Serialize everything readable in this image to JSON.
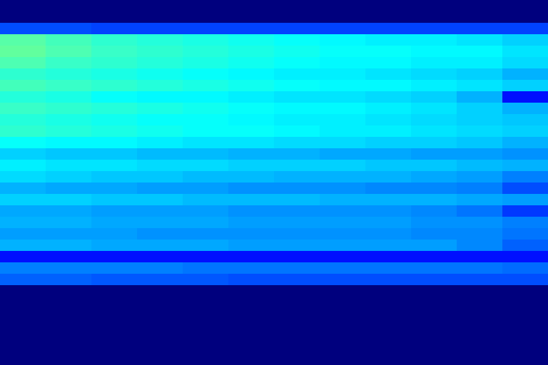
{
  "chart_data": {
    "type": "heatmap",
    "tick_labels": false,
    "color_domain": [
      0,
      1
    ],
    "cells": [
      [
        0,
        0,
        0,
        0,
        0,
        0,
        0,
        0,
        0,
        0,
        0,
        0
      ],
      [
        0,
        0,
        0,
        0,
        0,
        0,
        0,
        0,
        0,
        0,
        0,
        0
      ],
      [
        0.2,
        0.2,
        0.19,
        0.19,
        0.19,
        0.19,
        0.19,
        0.19,
        0.19,
        0.19,
        0.19,
        0.19
      ],
      [
        0.46,
        0.44,
        0.42,
        0.41,
        0.4,
        0.39,
        0.38,
        0.37,
        0.36,
        0.36,
        0.35,
        0.33
      ],
      [
        0.47,
        0.45,
        0.43,
        0.42,
        0.41,
        0.4,
        0.39,
        0.38,
        0.38,
        0.37,
        0.37,
        0.35
      ],
      [
        0.45,
        0.43,
        0.42,
        0.41,
        0.4,
        0.39,
        0.38,
        0.37,
        0.37,
        0.36,
        0.36,
        0.34
      ],
      [
        0.42,
        0.41,
        0.4,
        0.39,
        0.38,
        0.37,
        0.36,
        0.36,
        0.35,
        0.34,
        0.33,
        0.3
      ],
      [
        0.44,
        0.43,
        0.42,
        0.41,
        0.4,
        0.39,
        0.38,
        0.37,
        0.37,
        0.36,
        0.35,
        0.33
      ],
      [
        0.41,
        0.4,
        0.38,
        0.37,
        0.37,
        0.36,
        0.35,
        0.35,
        0.34,
        0.33,
        0.3,
        0.14
      ],
      [
        0.43,
        0.42,
        0.41,
        0.4,
        0.39,
        0.38,
        0.37,
        0.37,
        0.36,
        0.35,
        0.33,
        0.3
      ],
      [
        0.41,
        0.4,
        0.39,
        0.38,
        0.38,
        0.37,
        0.36,
        0.36,
        0.35,
        0.34,
        0.33,
        0.32
      ],
      [
        0.42,
        0.41,
        0.4,
        0.39,
        0.38,
        0.38,
        0.37,
        0.36,
        0.36,
        0.35,
        0.34,
        0.33
      ],
      [
        0.38,
        0.37,
        0.37,
        0.36,
        0.35,
        0.35,
        0.34,
        0.34,
        0.33,
        0.33,
        0.32,
        0.3
      ],
      [
        0.33,
        0.32,
        0.32,
        0.31,
        0.31,
        0.3,
        0.3,
        0.29,
        0.29,
        0.28,
        0.28,
        0.27
      ],
      [
        0.36,
        0.35,
        0.35,
        0.34,
        0.34,
        0.33,
        0.33,
        0.33,
        0.32,
        0.32,
        0.31,
        0.3
      ],
      [
        0.34,
        0.33,
        0.32,
        0.32,
        0.31,
        0.31,
        0.3,
        0.3,
        0.3,
        0.29,
        0.28,
        0.25
      ],
      [
        0.3,
        0.29,
        0.29,
        0.28,
        0.28,
        0.27,
        0.27,
        0.27,
        0.26,
        0.26,
        0.25,
        0.2
      ],
      [
        0.33,
        0.33,
        0.32,
        0.32,
        0.31,
        0.31,
        0.31,
        0.3,
        0.3,
        0.3,
        0.29,
        0.28
      ],
      [
        0.29,
        0.29,
        0.28,
        0.28,
        0.28,
        0.27,
        0.27,
        0.27,
        0.27,
        0.26,
        0.24,
        0.18
      ],
      [
        0.3,
        0.3,
        0.29,
        0.29,
        0.29,
        0.28,
        0.28,
        0.28,
        0.28,
        0.27,
        0.27,
        0.25
      ],
      [
        0.28,
        0.28,
        0.28,
        0.27,
        0.27,
        0.27,
        0.27,
        0.27,
        0.27,
        0.26,
        0.26,
        0.24
      ],
      [
        0.3,
        0.3,
        0.29,
        0.29,
        0.29,
        0.28,
        0.28,
        0.28,
        0.28,
        0.28,
        0.26,
        0.22
      ],
      [
        0.14,
        0.14,
        0.14,
        0.14,
        0.14,
        0.14,
        0.14,
        0.14,
        0.14,
        0.14,
        0.14,
        0.14
      ],
      [
        0.25,
        0.25,
        0.25,
        0.25,
        0.24,
        0.24,
        0.24,
        0.24,
        0.24,
        0.24,
        0.24,
        0.23
      ],
      [
        0.22,
        0.22,
        0.21,
        0.21,
        0.21,
        0.2,
        0.2,
        0.2,
        0.2,
        0.2,
        0.2,
        0.2
      ],
      [
        0,
        0,
        0,
        0,
        0,
        0,
        0,
        0,
        0,
        0,
        0,
        0
      ],
      [
        0,
        0,
        0,
        0,
        0,
        0,
        0,
        0,
        0,
        0,
        0,
        0
      ],
      [
        0,
        0,
        0,
        0,
        0,
        0,
        0,
        0,
        0,
        0,
        0,
        0
      ],
      [
        0,
        0,
        0,
        0,
        0,
        0,
        0,
        0,
        0,
        0,
        0,
        0
      ],
      [
        0,
        0,
        0,
        0,
        0,
        0,
        0,
        0,
        0,
        0,
        0,
        0
      ],
      [
        0,
        0,
        0,
        0,
        0,
        0,
        0,
        0,
        0,
        0,
        0,
        0
      ],
      [
        0,
        0,
        0,
        0,
        0,
        0,
        0,
        0,
        0,
        0,
        0,
        0
      ]
    ]
  }
}
